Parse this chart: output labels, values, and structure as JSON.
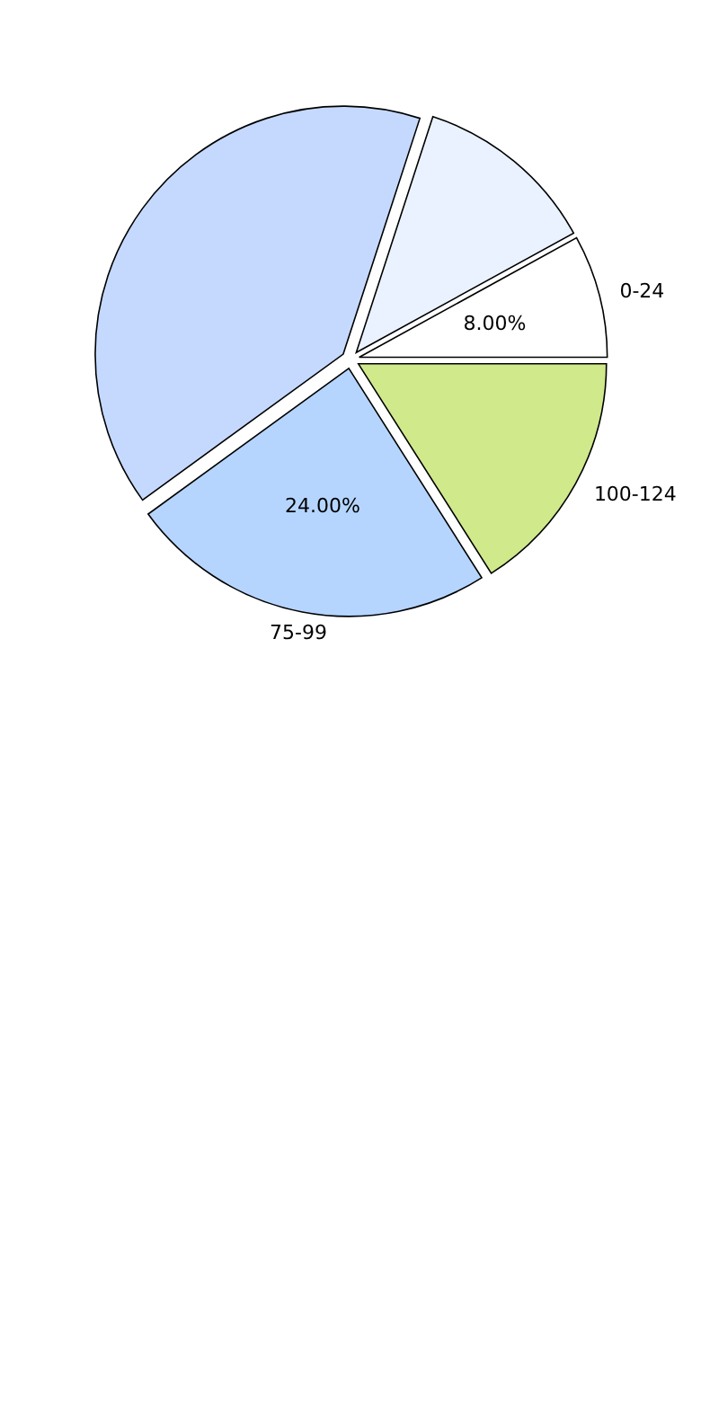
{
  "chart_data": {
    "type": "pie",
    "categories": [
      "0-24",
      null,
      null,
      "75-99",
      "100-124"
    ],
    "values": [
      8,
      12,
      40,
      24,
      16
    ],
    "colors": [
      "#ffffff",
      "#eaf2ff",
      "#c5d9ff",
      "#b5d5ff",
      "#cfe98b"
    ],
    "value_labels": [
      "8.00%",
      null,
      null,
      "24.00%",
      null
    ]
  }
}
